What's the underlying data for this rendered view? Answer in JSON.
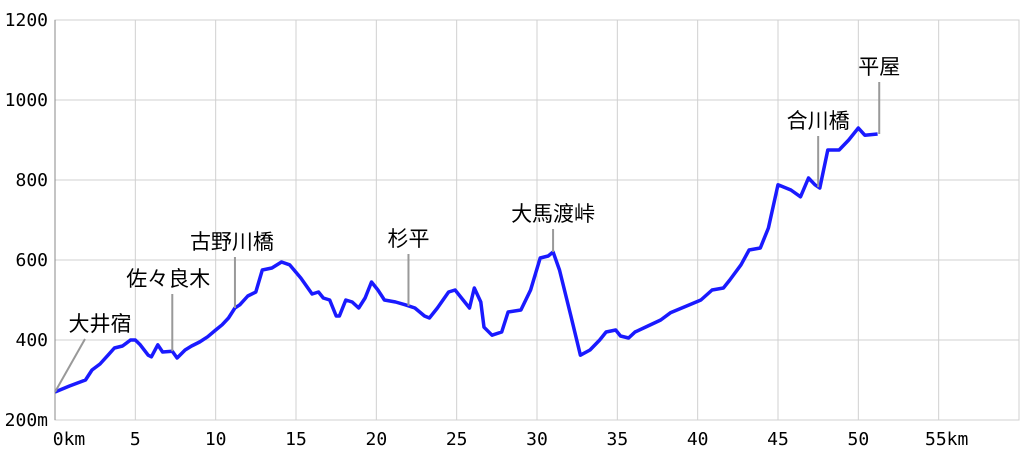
{
  "chart_data": {
    "type": "line",
    "color": "#1a1aff",
    "grid": true,
    "xlim": [
      0,
      60
    ],
    "ylim": [
      200,
      1200
    ],
    "xticks": [
      {
        "value": 0,
        "label": "0km"
      },
      5,
      10,
      15,
      20,
      25,
      30,
      35,
      40,
      45,
      50,
      {
        "value": 55,
        "label": "55km"
      }
    ],
    "yticks": [
      {
        "value": 200,
        "label": "200m"
      },
      400,
      600,
      800,
      1000,
      1200
    ],
    "x": [
      0,
      0.9,
      1.9,
      2.3,
      2.8,
      3.3,
      3.7,
      4.2,
      4.7,
      5.0,
      5.3,
      5.8,
      6.0,
      6.4,
      6.7,
      7.3,
      7.6,
      8.1,
      8.5,
      9.0,
      9.5,
      10.0,
      10.4,
      10.8,
      11.2,
      11.5,
      12.0,
      12.5,
      12.9,
      13.5,
      14.1,
      14.6,
      15.3,
      16.0,
      16.4,
      16.7,
      17.1,
      17.5,
      17.7,
      18.1,
      18.5,
      18.9,
      19.3,
      19.7,
      20.1,
      20.5,
      21.2,
      21.8,
      22.4,
      23.0,
      23.3,
      23.8,
      24.5,
      24.9,
      25.3,
      25.8,
      26.1,
      26.5,
      26.7,
      27.2,
      27.8,
      28.2,
      29.0,
      29.6,
      30.2,
      30.7,
      31.0,
      31.4,
      32.1,
      32.7,
      33.3,
      33.9,
      34.3,
      34.9,
      35.2,
      35.7,
      36.1,
      36.9,
      37.7,
      38.3,
      39.5,
      40.2,
      40.9,
      41.6,
      42.0,
      42.7,
      43.2,
      43.9,
      44.4,
      45.0,
      45.8,
      46.4,
      46.9,
      47.3,
      47.6,
      48.1,
      48.8,
      49.4,
      50.0,
      50.4,
      51.2
    ],
    "values": [
      270,
      285,
      300,
      325,
      340,
      362,
      380,
      385,
      400,
      400,
      388,
      362,
      358,
      388,
      370,
      372,
      355,
      375,
      385,
      395,
      408,
      425,
      438,
      455,
      480,
      488,
      510,
      520,
      575,
      580,
      595,
      588,
      555,
      515,
      520,
      505,
      500,
      460,
      460,
      500,
      495,
      480,
      505,
      545,
      525,
      500,
      495,
      488,
      480,
      460,
      455,
      480,
      520,
      525,
      505,
      480,
      530,
      495,
      432,
      412,
      420,
      470,
      475,
      525,
      605,
      610,
      620,
      575,
      462,
      362,
      375,
      400,
      420,
      425,
      410,
      405,
      420,
      435,
      450,
      468,
      488,
      500,
      525,
      530,
      550,
      588,
      625,
      630,
      680,
      788,
      775,
      758,
      805,
      788,
      780,
      875,
      875,
      900,
      930,
      912,
      915
    ],
    "annotations": [
      {
        "text": "大井宿",
        "x": 0,
        "y": 270
      },
      {
        "text": "佐々良木",
        "x": 7.3,
        "y": 372
      },
      {
        "text": "古野川橋",
        "x": 11.2,
        "y": 480
      },
      {
        "text": "杉平",
        "x": 22.0,
        "y": 485
      },
      {
        "text": "大馬渡峠",
        "x": 31.0,
        "y": 620
      },
      {
        "text": "合川橋",
        "x": 47.5,
        "y": 782
      },
      {
        "text": "平屋",
        "x": 51.3,
        "y": 915
      }
    ]
  }
}
